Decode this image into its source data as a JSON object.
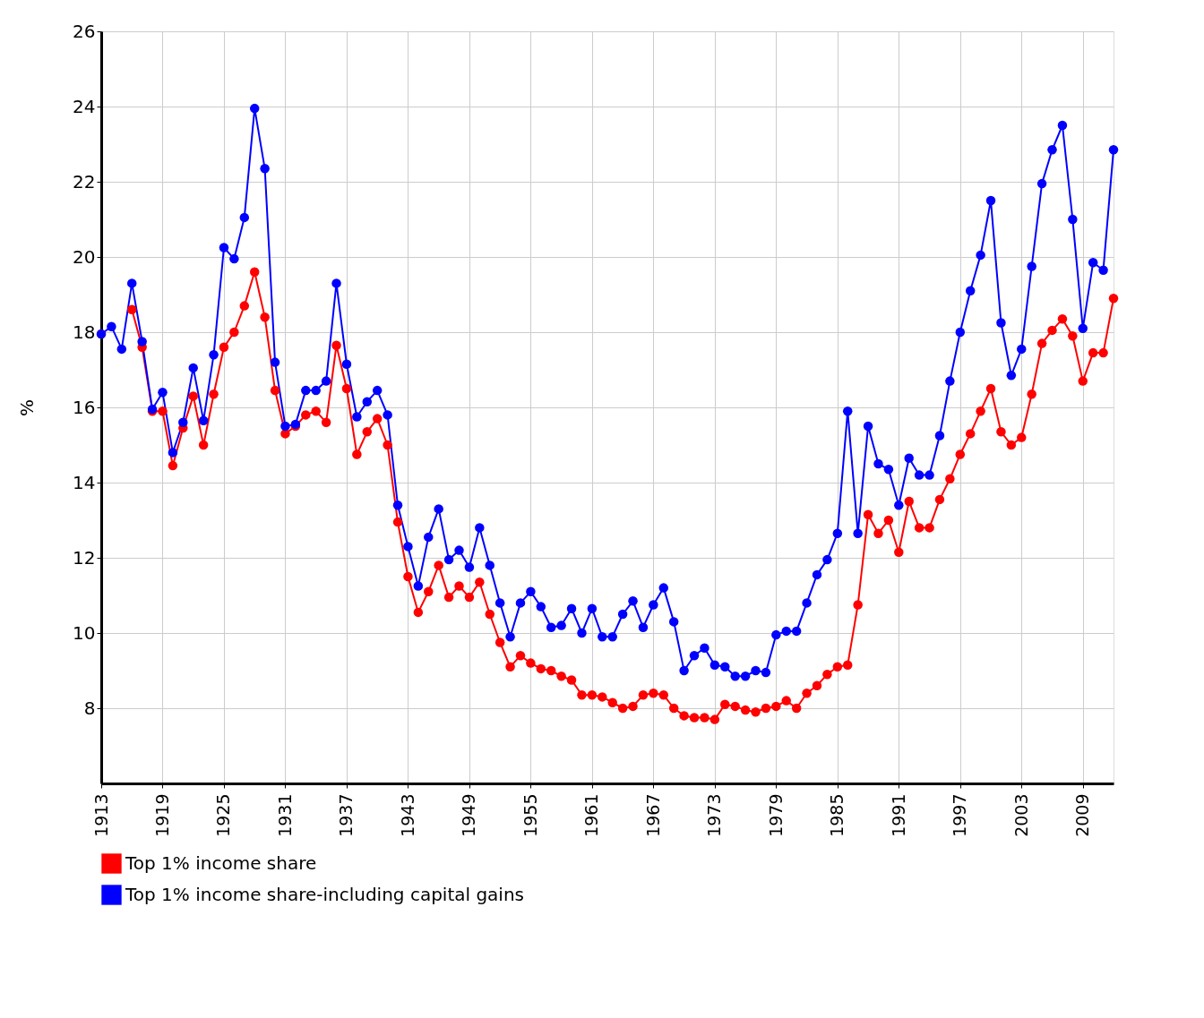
{
  "chart_data": {
    "type": "line",
    "ylabel": "%",
    "x": [
      1913,
      1914,
      1915,
      1916,
      1917,
      1918,
      1919,
      1920,
      1921,
      1922,
      1923,
      1924,
      1925,
      1926,
      1927,
      1928,
      1929,
      1930,
      1931,
      1932,
      1933,
      1934,
      1935,
      1936,
      1937,
      1938,
      1939,
      1940,
      1941,
      1942,
      1943,
      1944,
      1945,
      1946,
      1947,
      1948,
      1949,
      1950,
      1951,
      1952,
      1953,
      1954,
      1955,
      1956,
      1957,
      1958,
      1959,
      1960,
      1961,
      1962,
      1963,
      1964,
      1965,
      1966,
      1967,
      1968,
      1969,
      1970,
      1971,
      1972,
      1973,
      1974,
      1975,
      1976,
      1977,
      1978,
      1979,
      1980,
      1981,
      1982,
      1983,
      1984,
      1985,
      1986,
      1987,
      1988,
      1989,
      1990,
      1991,
      1992,
      1993,
      1994,
      1995,
      1996,
      1997,
      1998,
      1999,
      2000,
      2001,
      2002,
      2003,
      2004,
      2005,
      2006,
      2007,
      2008,
      2009,
      2010,
      2011,
      2012
    ],
    "series": [
      {
        "name": "Top 1% income share",
        "color": "#ff0000",
        "values": [
          17.95,
          null,
          null,
          18.6,
          17.6,
          15.9,
          15.9,
          14.45,
          15.45,
          16.3,
          15.0,
          16.35,
          17.6,
          18.0,
          18.7,
          19.6,
          18.4,
          16.45,
          15.3,
          15.5,
          15.8,
          15.9,
          15.6,
          17.65,
          16.5,
          14.75,
          15.35,
          15.7,
          15.0,
          12.95,
          11.5,
          10.55,
          11.1,
          11.8,
          10.95,
          11.25,
          10.95,
          11.35,
          10.5,
          9.75,
          9.1,
          9.4,
          9.2,
          9.05,
          9.0,
          8.85,
          8.75,
          8.35,
          8.35,
          8.3,
          8.15,
          8.0,
          8.05,
          8.35,
          8.4,
          8.35,
          8.0,
          7.8,
          7.75,
          7.75,
          7.7,
          8.1,
          8.05,
          7.95,
          7.9,
          8.0,
          8.05,
          8.2,
          8.0,
          8.4,
          8.6,
          8.9,
          9.1,
          9.15,
          10.75,
          13.15,
          12.65,
          13.0,
          12.15,
          13.5,
          12.8,
          12.8,
          13.55,
          14.1,
          14.75,
          15.3,
          15.9,
          16.5,
          15.35,
          15.0,
          15.2,
          16.35,
          17.7,
          18.05,
          18.35,
          17.9,
          16.7,
          17.45,
          17.45,
          18.9
        ]
      },
      {
        "name": "Top 1% income share-including capital gains",
        "color": "#0000ff",
        "values": [
          17.95,
          18.15,
          17.55,
          19.3,
          17.75,
          15.95,
          16.4,
          14.8,
          15.6,
          17.05,
          15.65,
          17.4,
          20.25,
          19.95,
          21.05,
          23.95,
          22.35,
          17.2,
          15.5,
          15.55,
          16.45,
          16.45,
          16.7,
          19.3,
          17.15,
          15.75,
          16.15,
          16.45,
          15.8,
          13.4,
          12.3,
          11.25,
          12.55,
          13.3,
          11.95,
          12.2,
          11.75,
          12.8,
          11.8,
          10.8,
          9.9,
          10.8,
          11.1,
          10.7,
          10.15,
          10.2,
          10.65,
          10.0,
          10.65,
          9.9,
          9.9,
          10.5,
          10.85,
          10.15,
          10.75,
          11.2,
          10.3,
          9.0,
          9.4,
          9.6,
          9.15,
          9.1,
          8.85,
          8.85,
          9.0,
          8.95,
          9.95,
          10.05,
          10.05,
          10.8,
          11.55,
          11.95,
          12.65,
          15.9,
          12.65,
          15.5,
          14.5,
          14.35,
          13.4,
          14.65,
          14.2,
          14.2,
          15.25,
          16.7,
          18.0,
          19.1,
          20.05,
          21.5,
          18.25,
          16.85,
          17.55,
          19.75,
          21.95,
          22.85,
          23.5,
          21.0,
          18.1,
          19.85,
          19.65,
          22.85
        ]
      }
    ],
    "xlim": [
      1913,
      2012
    ],
    "xticks": [
      1913,
      1919,
      1925,
      1931,
      1937,
      1943,
      1949,
      1955,
      1961,
      1967,
      1973,
      1979,
      1985,
      1991,
      1997,
      2003,
      2009
    ],
    "ylim": [
      6,
      26
    ],
    "yticks": [
      8,
      10,
      12,
      14,
      16,
      18,
      20,
      22,
      24,
      26
    ],
    "grid": true,
    "legend": "bottom",
    "marker": "circle",
    "line_style": "solid"
  }
}
